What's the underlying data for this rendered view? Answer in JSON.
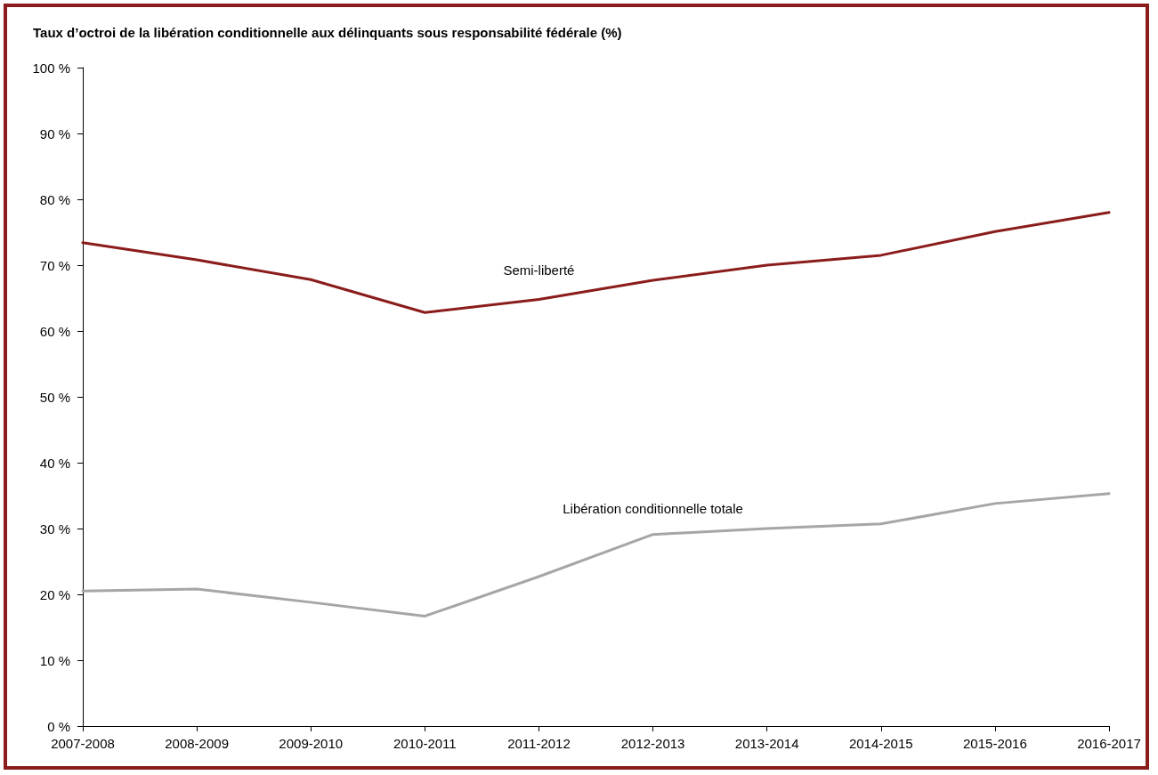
{
  "chart_data": {
    "type": "line",
    "title": "Taux d’octroi de la libération conditionnelle aux délinquants sous responsabilité fédérale (%)",
    "categories": [
      "2007-2008",
      "2008-2009",
      "2009-2010",
      "2010-2011",
      "2011-2012",
      "2012-2013",
      "2013-2014",
      "2014-2015",
      "2015-2016",
      "2016-2017"
    ],
    "series": [
      {
        "name": "Semi-liberté",
        "color": "#8b1c1c",
        "values": [
          73.4,
          70.8,
          67.8,
          62.8,
          64.8,
          67.7,
          70.0,
          71.5,
          75.1,
          78.0
        ]
      },
      {
        "name": "Libération conditionnelle totale",
        "color": "#a6a6a6",
        "values": [
          20.5,
          20.8,
          18.8,
          16.7,
          22.7,
          29.1,
          30.0,
          30.7,
          33.8,
          35.3
        ]
      }
    ],
    "ylim": [
      0,
      100
    ],
    "yticks": [
      {
        "value": 0,
        "label": "0 %"
      },
      {
        "value": 10,
        "label": "10 %"
      },
      {
        "value": 20,
        "label": "20 %"
      },
      {
        "value": 30,
        "label": "30 %"
      },
      {
        "value": 40,
        "label": "40 %"
      },
      {
        "value": 50,
        "label": "50 %"
      },
      {
        "value": 60,
        "label": "60 %"
      },
      {
        "value": 70,
        "label": "70 %"
      },
      {
        "value": 80,
        "label": "80 %"
      },
      {
        "value": 90,
        "label": "90 %"
      },
      {
        "value": 100,
        "label": "100 %"
      }
    ],
    "legend": false,
    "marker": "none",
    "line_style": "solid"
  }
}
